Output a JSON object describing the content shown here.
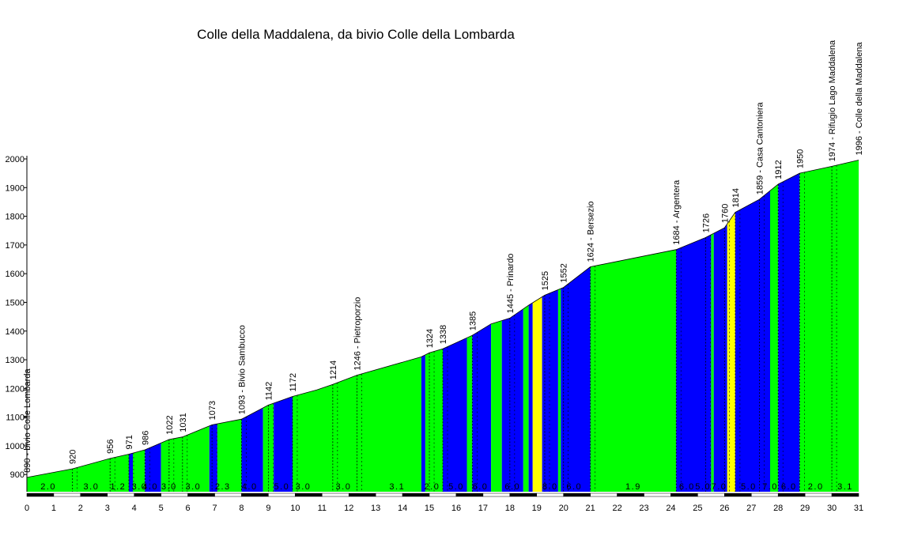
{
  "chart_data": {
    "type": "area",
    "title": "Colle della Maddalena, da bivio Colle della Lombarda",
    "xlabel": "",
    "ylabel": "",
    "xlim": [
      0,
      31
    ],
    "ylim": [
      840,
      2000
    ],
    "x_ticks": [
      0,
      1,
      2,
      3,
      4,
      5,
      6,
      7,
      8,
      9,
      10,
      11,
      12,
      13,
      14,
      15,
      16,
      17,
      18,
      19,
      20,
      21,
      22,
      23,
      24,
      25,
      26,
      27,
      28,
      29,
      30,
      31
    ],
    "y_ticks": [
      900,
      1000,
      1100,
      1200,
      1300,
      1400,
      1500,
      1600,
      1700,
      1800,
      1900,
      2000
    ],
    "colors": {
      "green": "#00ff00",
      "blue": "#0000ff",
      "yellow": "#ffff00",
      "black": "#000000"
    },
    "profile": [
      [
        0,
        890
      ],
      [
        1.7,
        920
      ],
      [
        3.1,
        956
      ],
      [
        3.8,
        971
      ],
      [
        4.4,
        986
      ],
      [
        5.3,
        1022
      ],
      [
        5.8,
        1031
      ],
      [
        6.9,
        1073
      ],
      [
        8.0,
        1093
      ],
      [
        9.0,
        1142
      ],
      [
        9.9,
        1172
      ],
      [
        10.8,
        1195
      ],
      [
        11.4,
        1214
      ],
      [
        12.3,
        1246
      ],
      [
        14.7,
        1310
      ],
      [
        15.0,
        1324
      ],
      [
        15.5,
        1338
      ],
      [
        16.6,
        1385
      ],
      [
        17.3,
        1425
      ],
      [
        18.0,
        1445
      ],
      [
        18.7,
        1490
      ],
      [
        19.3,
        1525
      ],
      [
        20.0,
        1552
      ],
      [
        21.0,
        1624
      ],
      [
        24.2,
        1684
      ],
      [
        25.3,
        1726
      ],
      [
        26.0,
        1760
      ],
      [
        26.4,
        1814
      ],
      [
        27.3,
        1859
      ],
      [
        28.0,
        1912
      ],
      [
        28.8,
        1950
      ],
      [
        30.0,
        1974
      ],
      [
        31.0,
        1996
      ]
    ],
    "segments": [
      {
        "from": 0,
        "to": 3.8,
        "color": "green"
      },
      {
        "from": 3.8,
        "to": 3.95,
        "color": "blue"
      },
      {
        "from": 3.95,
        "to": 4.4,
        "color": "green"
      },
      {
        "from": 4.4,
        "to": 5.0,
        "color": "blue"
      },
      {
        "from": 5.0,
        "to": 6.8,
        "color": "green"
      },
      {
        "from": 6.8,
        "to": 7.1,
        "color": "blue"
      },
      {
        "from": 7.1,
        "to": 8.0,
        "color": "green"
      },
      {
        "from": 8.0,
        "to": 8.8,
        "color": "blue"
      },
      {
        "from": 8.8,
        "to": 9.2,
        "color": "green"
      },
      {
        "from": 9.2,
        "to": 9.9,
        "color": "blue"
      },
      {
        "from": 9.9,
        "to": 14.7,
        "color": "green"
      },
      {
        "from": 14.7,
        "to": 14.85,
        "color": "blue"
      },
      {
        "from": 14.85,
        "to": 15.5,
        "color": "green"
      },
      {
        "from": 15.5,
        "to": 16.4,
        "color": "blue"
      },
      {
        "from": 16.4,
        "to": 16.6,
        "color": "green"
      },
      {
        "from": 16.6,
        "to": 17.3,
        "color": "blue"
      },
      {
        "from": 17.3,
        "to": 17.7,
        "color": "green"
      },
      {
        "from": 17.7,
        "to": 18.5,
        "color": "blue"
      },
      {
        "from": 18.5,
        "to": 18.7,
        "color": "green"
      },
      {
        "from": 18.7,
        "to": 18.85,
        "color": "blue"
      },
      {
        "from": 18.85,
        "to": 19.2,
        "color": "yellow"
      },
      {
        "from": 19.2,
        "to": 19.8,
        "color": "blue"
      },
      {
        "from": 19.8,
        "to": 19.9,
        "color": "green"
      },
      {
        "from": 19.9,
        "to": 21.0,
        "color": "blue"
      },
      {
        "from": 21.0,
        "to": 24.2,
        "color": "green"
      },
      {
        "from": 24.2,
        "to": 25.5,
        "color": "blue"
      },
      {
        "from": 25.5,
        "to": 25.6,
        "color": "green"
      },
      {
        "from": 25.6,
        "to": 26.1,
        "color": "blue"
      },
      {
        "from": 26.1,
        "to": 26.4,
        "color": "yellow"
      },
      {
        "from": 26.4,
        "to": 27.7,
        "color": "blue"
      },
      {
        "from": 27.7,
        "to": 28.0,
        "color": "green"
      },
      {
        "from": 28.0,
        "to": 28.8,
        "color": "blue"
      },
      {
        "from": 28.8,
        "to": 31.0,
        "color": "green"
      }
    ],
    "slope_labels": [
      {
        "x": 0.8,
        "text": "2.0"
      },
      {
        "x": 2.4,
        "text": "3.0"
      },
      {
        "x": 3.4,
        "text": "1.2"
      },
      {
        "x": 4.2,
        "text": "3.0"
      },
      {
        "x": 4.6,
        "text": "4.0"
      },
      {
        "x": 5.3,
        "text": "3.0"
      },
      {
        "x": 6.2,
        "text": "3.0"
      },
      {
        "x": 7.3,
        "text": "2.3"
      },
      {
        "x": 8.3,
        "text": "4.0"
      },
      {
        "x": 9.5,
        "text": "5.0"
      },
      {
        "x": 10.3,
        "text": "3.0"
      },
      {
        "x": 11.8,
        "text": "3.0"
      },
      {
        "x": 13.8,
        "text": "3.1"
      },
      {
        "x": 15.1,
        "text": "2.0"
      },
      {
        "x": 16.0,
        "text": "5.0"
      },
      {
        "x": 16.9,
        "text": "6.0"
      },
      {
        "x": 18.1,
        "text": "6.0"
      },
      {
        "x": 19.5,
        "text": "8.0"
      },
      {
        "x": 20.4,
        "text": "6.0"
      },
      {
        "x": 22.6,
        "text": "1.9"
      },
      {
        "x": 24.6,
        "text": "6.0"
      },
      {
        "x": 25.2,
        "text": "5.0"
      },
      {
        "x": 25.8,
        "text": "7.0"
      },
      {
        "x": 26.9,
        "text": "5.0"
      },
      {
        "x": 27.7,
        "text": "7.0"
      },
      {
        "x": 28.4,
        "text": "6.0"
      },
      {
        "x": 29.4,
        "text": "2.0"
      },
      {
        "x": 30.5,
        "text": "3.1"
      }
    ],
    "annotations": [
      {
        "x": 0,
        "alt": 890,
        "text": "890 - bivio Colle Lombarda"
      },
      {
        "x": 1.7,
        "alt": 920,
        "text": "920"
      },
      {
        "x": 3.1,
        "alt": 956,
        "text": "956"
      },
      {
        "x": 3.8,
        "alt": 971,
        "text": "971"
      },
      {
        "x": 4.4,
        "alt": 986,
        "text": "986"
      },
      {
        "x": 5.3,
        "alt": 1022,
        "text": "1022"
      },
      {
        "x": 5.8,
        "alt": 1031,
        "text": "1031"
      },
      {
        "x": 6.9,
        "alt": 1073,
        "text": "1073"
      },
      {
        "x": 8.0,
        "alt": 1093,
        "text": "1093 - Bivio Sambucco"
      },
      {
        "x": 9.0,
        "alt": 1142,
        "text": "1142"
      },
      {
        "x": 9.9,
        "alt": 1172,
        "text": "1172"
      },
      {
        "x": 11.4,
        "alt": 1214,
        "text": "1214"
      },
      {
        "x": 12.3,
        "alt": 1246,
        "text": "1246 - Pietroporzio"
      },
      {
        "x": 15.0,
        "alt": 1324,
        "text": "1324"
      },
      {
        "x": 15.5,
        "alt": 1338,
        "text": "1338"
      },
      {
        "x": 16.6,
        "alt": 1385,
        "text": "1385"
      },
      {
        "x": 18.0,
        "alt": 1445,
        "text": "1445 - Prinardo"
      },
      {
        "x": 19.3,
        "alt": 1525,
        "text": "1525"
      },
      {
        "x": 20.0,
        "alt": 1552,
        "text": "1552"
      },
      {
        "x": 21.0,
        "alt": 1624,
        "text": "1624 - Bersezio"
      },
      {
        "x": 24.2,
        "alt": 1684,
        "text": "1684 - Argentera"
      },
      {
        "x": 25.3,
        "alt": 1726,
        "text": "1726"
      },
      {
        "x": 26.0,
        "alt": 1760,
        "text": "1760"
      },
      {
        "x": 26.4,
        "alt": 1814,
        "text": "1814"
      },
      {
        "x": 27.3,
        "alt": 1859,
        "text": "1859 - Casa Cantoniera"
      },
      {
        "x": 28.0,
        "alt": 1912,
        "text": "1912"
      },
      {
        "x": 28.8,
        "alt": 1950,
        "text": "1950"
      },
      {
        "x": 30.0,
        "alt": 1974,
        "text": "1974 - Rifugio Lago Maddalena"
      },
      {
        "x": 31.0,
        "alt": 1996,
        "text": "1996 - Colle della Maddalena"
      }
    ]
  }
}
